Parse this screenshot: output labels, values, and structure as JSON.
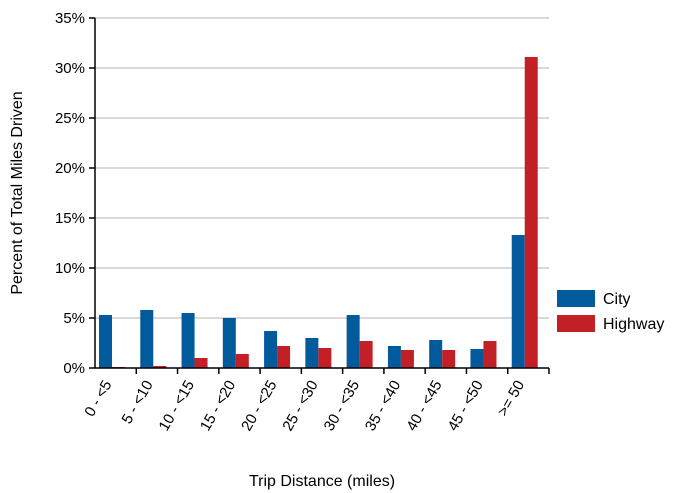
{
  "chart_data": {
    "type": "bar",
    "categories": [
      "0 - <5",
      "5 - <10",
      "10 - <15",
      "15 - <20",
      "20 - <25",
      "25 - <30",
      "30 - <35",
      "35 - <40",
      "40 - <45",
      "45 - <50",
      ">= 50"
    ],
    "series": [
      {
        "name": "City",
        "color": "#005a9c",
        "values": [
          5.3,
          5.8,
          5.5,
          5.0,
          3.7,
          3.0,
          5.3,
          2.2,
          2.8,
          1.9,
          13.3
        ]
      },
      {
        "name": "Highway",
        "color": "#c21f26",
        "values": [
          0.1,
          0.2,
          1.0,
          1.4,
          2.2,
          2.0,
          2.7,
          1.8,
          1.8,
          2.7,
          31.1
        ]
      }
    ],
    "xlabel": "Trip Distance (miles)",
    "ylabel": "Percent of Total Miles Driven",
    "ylim": [
      0,
      35
    ],
    "yticks": [
      0,
      5,
      10,
      15,
      20,
      25,
      30,
      35
    ],
    "ytick_labels": [
      "0%",
      "5%",
      "10%",
      "15%",
      "20%",
      "25%",
      "30%",
      "35%"
    ],
    "grid": true,
    "legend": "right"
  }
}
